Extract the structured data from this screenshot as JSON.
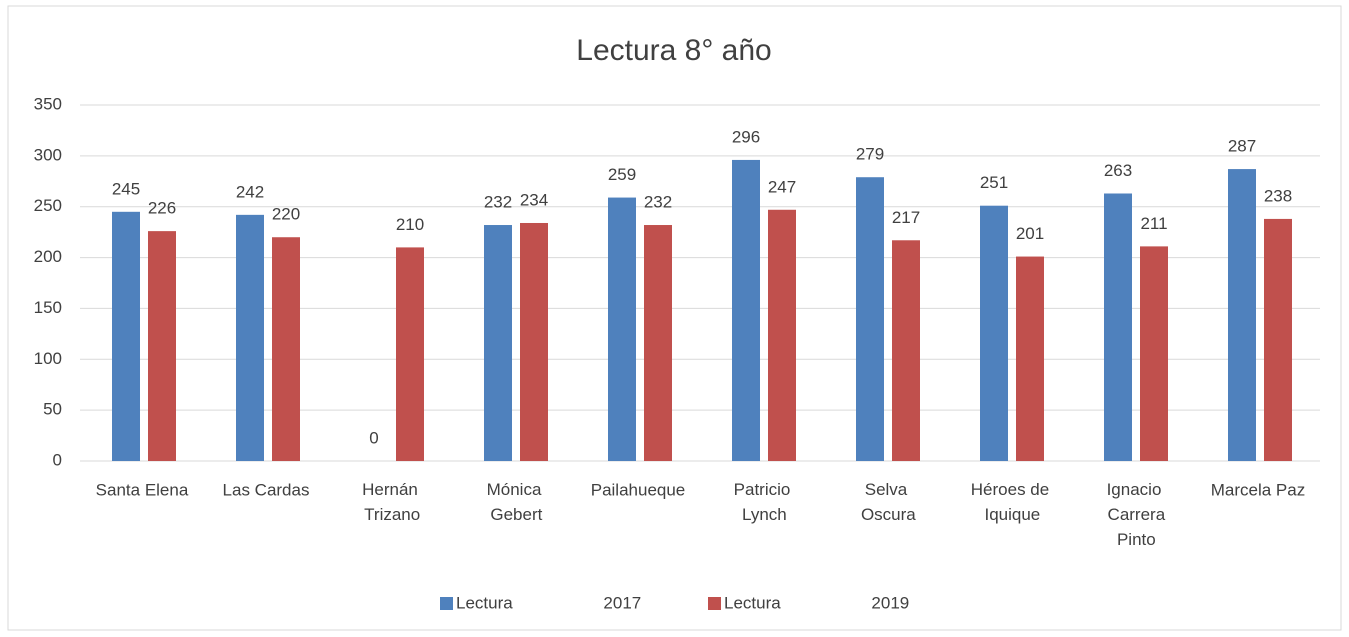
{
  "chart_data": {
    "type": "bar",
    "title": "Lectura 8° año",
    "categories": [
      "Santa Elena",
      "Las Cardas",
      "Hernán Trizano",
      "Mónica Gebert",
      "Pailahueque",
      "Patricio Lynch",
      "Selva Oscura",
      "Héroes de Iquique",
      "Ignacio Carrera Pinto",
      "Marcela Paz"
    ],
    "series": [
      {
        "name": "Lectura 2017",
        "color": "#4f81bd",
        "values": [
          245,
          242,
          0,
          232,
          259,
          296,
          279,
          251,
          263,
          287
        ]
      },
      {
        "name": "Lectura 2019",
        "color": "#c0504d",
        "values": [
          226,
          220,
          210,
          234,
          232,
          247,
          217,
          201,
          211,
          238
        ]
      }
    ],
    "ylim": [
      0,
      350
    ],
    "yticks": [
      0,
      50,
      100,
      150,
      200,
      250,
      300,
      350
    ],
    "grid": true,
    "legend": "bottom"
  }
}
